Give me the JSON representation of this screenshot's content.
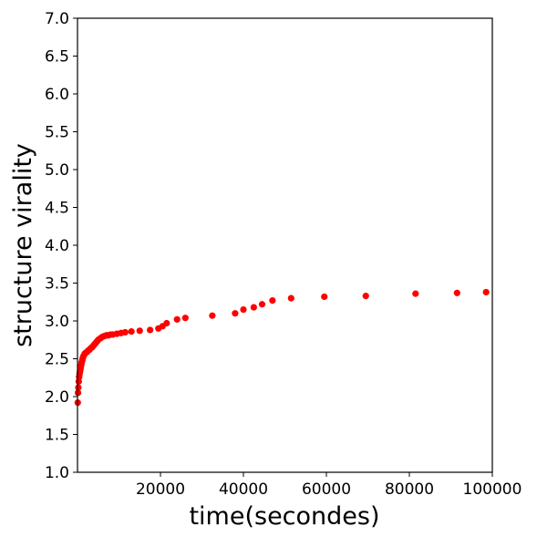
{
  "chart_data": {
    "type": "scatter",
    "title": "",
    "xlabel": "time(secondes)",
    "ylabel": "structure virality",
    "xlim": [
      0,
      100000
    ],
    "ylim": [
      1.0,
      7.0
    ],
    "grid": false,
    "x_ticks": [
      20000,
      40000,
      60000,
      80000,
      100000
    ],
    "x_tick_labels": [
      "20000",
      "40000",
      "60000",
      "80000",
      "100000"
    ],
    "y_ticks": [
      1.0,
      1.5,
      2.0,
      2.5,
      3.0,
      3.5,
      4.0,
      4.5,
      5.0,
      5.5,
      6.0,
      6.5,
      7.0
    ],
    "y_tick_labels": [
      "1.0",
      "1.5",
      "2.0",
      "2.5",
      "3.0",
      "3.5",
      "4.0",
      "4.5",
      "5.0",
      "5.5",
      "6.0",
      "6.5",
      "7.0"
    ],
    "marker_color": "#ff0000",
    "series": [
      {
        "x": [
          60,
          120,
          200,
          300,
          400,
          500,
          600,
          700,
          800,
          900,
          1000,
          1100,
          1200,
          1300,
          1400,
          1600,
          1800,
          2000,
          2300,
          2600,
          2900,
          3200,
          3500,
          3800,
          4100,
          4400,
          4700,
          5000,
          5500,
          6000,
          6500,
          7000,
          7500,
          8000,
          8500,
          9500,
          10500,
          11500,
          13000,
          15000,
          17500,
          19500,
          20500,
          21500,
          24000,
          26000,
          32500,
          38000,
          40000,
          42500,
          44500,
          47000,
          51500,
          59500,
          69500,
          81500,
          91500,
          98500
        ],
        "y": [
          1.92,
          2.05,
          2.12,
          2.2,
          2.26,
          2.3,
          2.33,
          2.36,
          2.39,
          2.42,
          2.45,
          2.47,
          2.49,
          2.51,
          2.53,
          2.55,
          2.57,
          2.58,
          2.59,
          2.61,
          2.62,
          2.64,
          2.65,
          2.67,
          2.69,
          2.71,
          2.73,
          2.75,
          2.77,
          2.79,
          2.8,
          2.81,
          2.81,
          2.82,
          2.82,
          2.83,
          2.84,
          2.85,
          2.86,
          2.87,
          2.88,
          2.9,
          2.93,
          2.97,
          3.02,
          3.04,
          3.07,
          3.1,
          3.15,
          3.18,
          3.22,
          3.27,
          3.3,
          3.32,
          3.33,
          3.36,
          3.37,
          3.38
        ]
      }
    ]
  }
}
